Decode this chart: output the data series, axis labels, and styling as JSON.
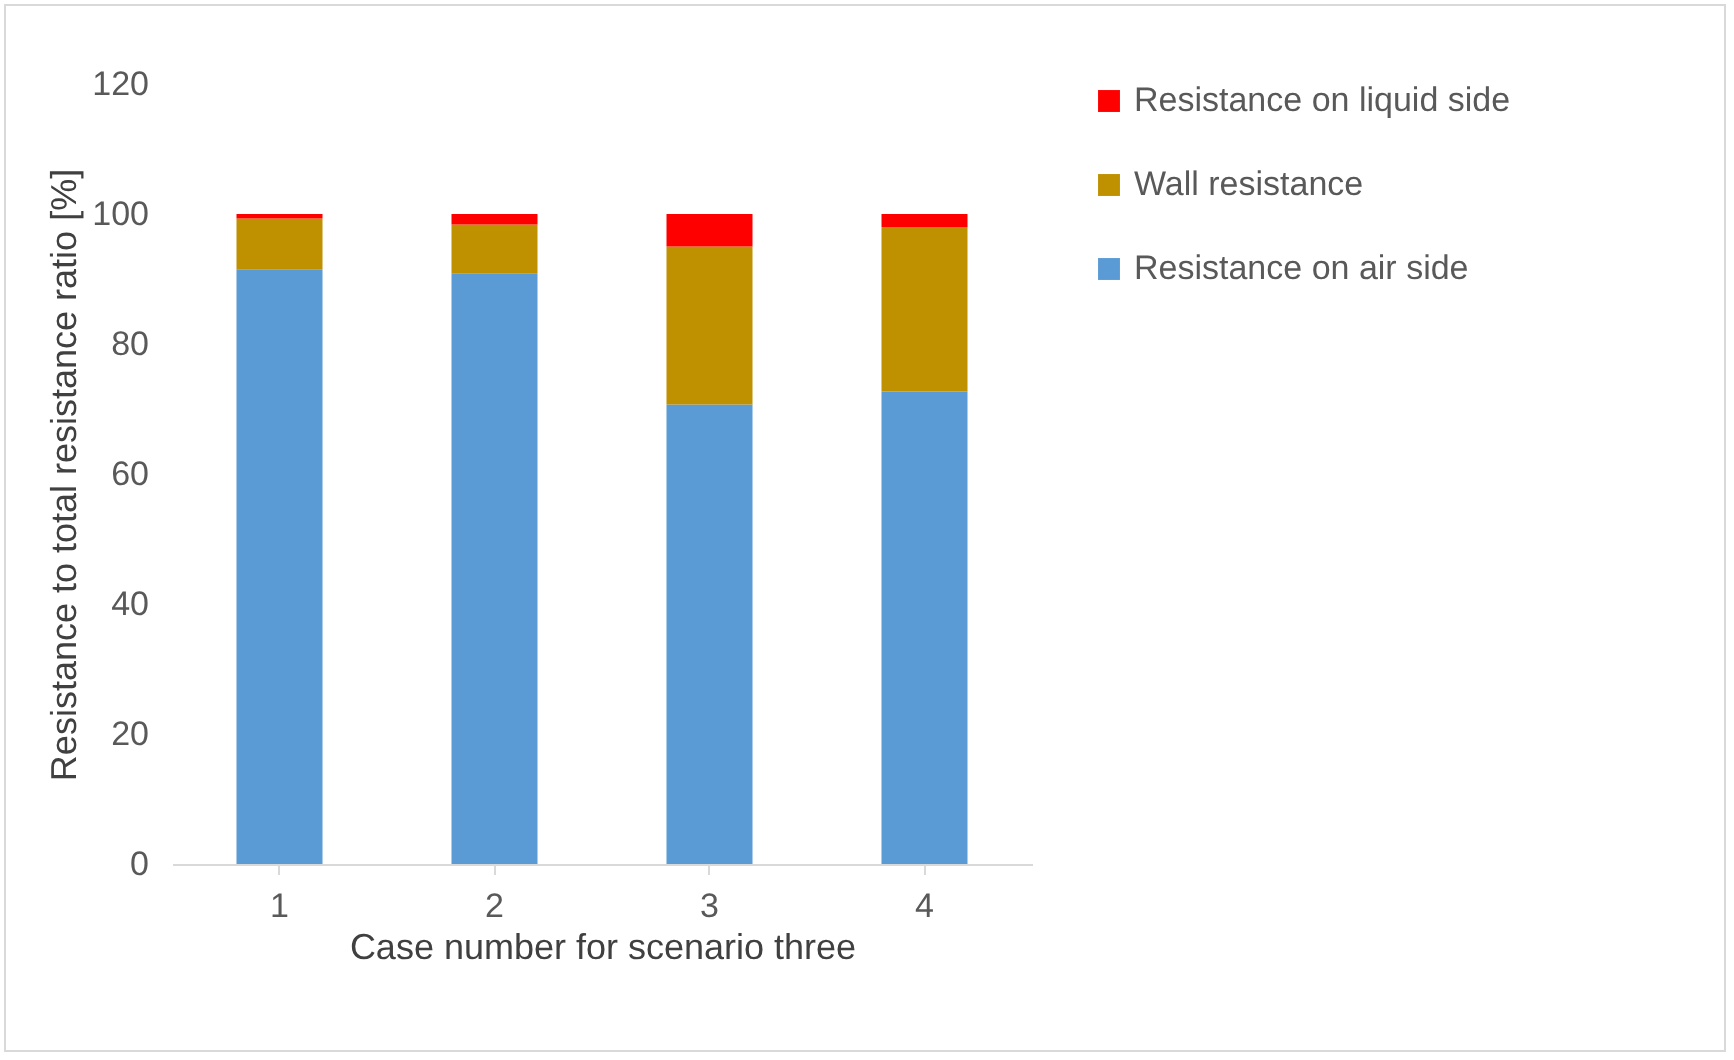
{
  "chart_data": {
    "type": "bar",
    "stacked": true,
    "xlabel": "Case number for scenario three",
    "ylabel": "Resistance to total resistance ratio [%]",
    "categories": [
      "1",
      "2",
      "3",
      "4"
    ],
    "series": [
      {
        "name": "Resistance on air side",
        "color": "#5b9bd5",
        "values": [
          91.5,
          90.8,
          70.7,
          72.7
        ]
      },
      {
        "name": "Wall resistance",
        "color": "#bf9000",
        "values": [
          7.8,
          7.6,
          24.3,
          25.3
        ]
      },
      {
        "name": "Resistance on liquid side",
        "color": "#ff0000",
        "values": [
          0.7,
          1.6,
          5.0,
          2.0
        ]
      }
    ],
    "ylim": [
      0,
      120
    ],
    "yticks": [
      0,
      20,
      40,
      60,
      80,
      100,
      120
    ],
    "grid": false,
    "legend": "right"
  }
}
